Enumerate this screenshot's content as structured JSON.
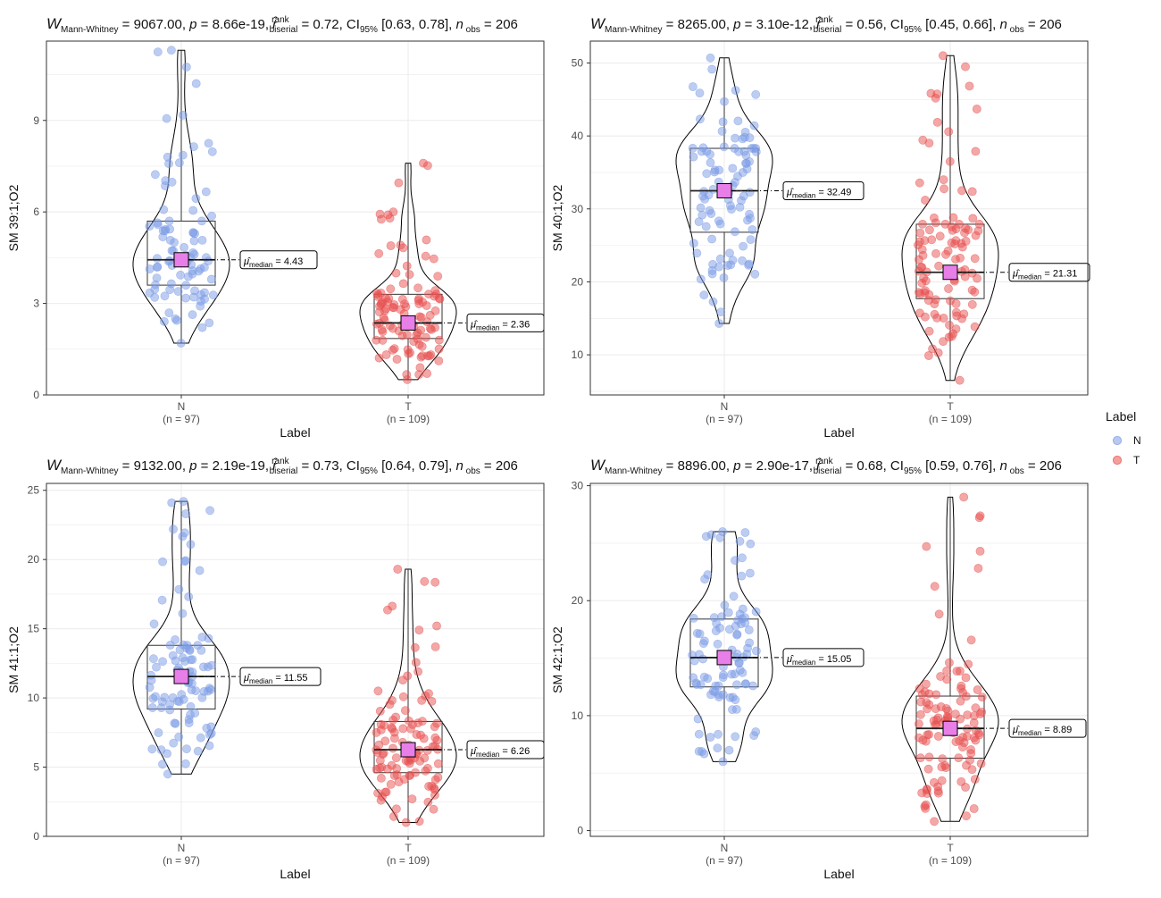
{
  "colors": {
    "N": "#7b9be6",
    "T": "#e8504f",
    "median_marker": "#e87ee8",
    "grid": "#ebebeb",
    "panel_border": "#333333"
  },
  "legend": {
    "title": "Label",
    "placement": "right",
    "items": [
      {
        "label": "N",
        "color": "#7b9be6"
      },
      {
        "label": "T",
        "color": "#e8504f"
      }
    ]
  },
  "chart_data": [
    {
      "type": "violin-box-scatter",
      "subtitle": {
        "W": "9067.00",
        "p": "8.66e-19",
        "r": "0.72",
        "ci": "[0.63, 0.78]",
        "n_obs": "206"
      },
      "ylabel": "SM 39:1;O2",
      "xlabel": "Label",
      "ylim": [
        0,
        11.6
      ],
      "yticks": [
        0,
        3,
        6,
        9
      ],
      "groups": [
        {
          "name": "N",
          "n_label": "(n = 97)",
          "n": 97,
          "q1": 3.6,
          "median": 4.43,
          "q3": 5.7,
          "min": 1.7,
          "max": 11.3,
          "median_label": "4.43"
        },
        {
          "name": "T",
          "n_label": "(n = 109)",
          "n": 109,
          "q1": 1.85,
          "median": 2.36,
          "q3": 3.3,
          "min": 0.5,
          "max": 7.6,
          "median_label": "2.36"
        }
      ]
    },
    {
      "type": "violin-box-scatter",
      "subtitle": {
        "W": "8265.00",
        "p": "3.10e-12",
        "r": "0.56",
        "ci": "[0.45, 0.66]",
        "n_obs": "206"
      },
      "ylabel": "SM 40:1;O2",
      "xlabel": "Label",
      "ylim": [
        4.5,
        53
      ],
      "yticks": [
        10,
        20,
        30,
        40,
        50
      ],
      "groups": [
        {
          "name": "N",
          "n_label": "(n = 97)",
          "n": 97,
          "q1": 26.8,
          "median": 32.49,
          "q3": 38.3,
          "min": 14.3,
          "max": 50.7,
          "median_label": "32.49"
        },
        {
          "name": "T",
          "n_label": "(n = 109)",
          "n": 109,
          "q1": 17.7,
          "median": 21.31,
          "q3": 27.9,
          "min": 6.5,
          "max": 51.0,
          "median_label": "21.31"
        }
      ]
    },
    {
      "type": "violin-box-scatter",
      "subtitle": {
        "W": "9132.00",
        "p": "2.19e-19",
        "r": "0.73",
        "ci": "[0.64, 0.79]",
        "n_obs": "206"
      },
      "ylabel": "SM 41:1;O2",
      "xlabel": "Label",
      "ylim": [
        0,
        25.5
      ],
      "yticks": [
        0,
        5,
        10,
        15,
        20,
        25
      ],
      "groups": [
        {
          "name": "N",
          "n_label": "(n = 97)",
          "n": 97,
          "q1": 9.2,
          "median": 11.55,
          "q3": 13.8,
          "min": 4.5,
          "max": 24.2,
          "median_label": "11.55"
        },
        {
          "name": "T",
          "n_label": "(n = 109)",
          "n": 109,
          "q1": 4.6,
          "median": 6.26,
          "q3": 8.3,
          "min": 1.0,
          "max": 19.3,
          "median_label": "6.26"
        }
      ]
    },
    {
      "type": "violin-box-scatter",
      "subtitle": {
        "W": "8896.00",
        "p": "2.90e-17",
        "r": "0.68",
        "ci": "[0.59, 0.76]",
        "n_obs": "206"
      },
      "ylabel": "SM 42:1;O2",
      "xlabel": "Label",
      "ylim": [
        -0.5,
        30.2
      ],
      "yticks": [
        0,
        10,
        20,
        30
      ],
      "groups": [
        {
          "name": "N",
          "n_label": "(n = 97)",
          "n": 97,
          "q1": 12.5,
          "median": 15.05,
          "q3": 18.4,
          "min": 6.0,
          "max": 26.0,
          "median_label": "15.05"
        },
        {
          "name": "T",
          "n_label": "(n = 109)",
          "n": 109,
          "q1": 6.3,
          "median": 8.89,
          "q3": 11.7,
          "min": 0.8,
          "max": 29.0,
          "median_label": "8.89"
        }
      ]
    }
  ]
}
